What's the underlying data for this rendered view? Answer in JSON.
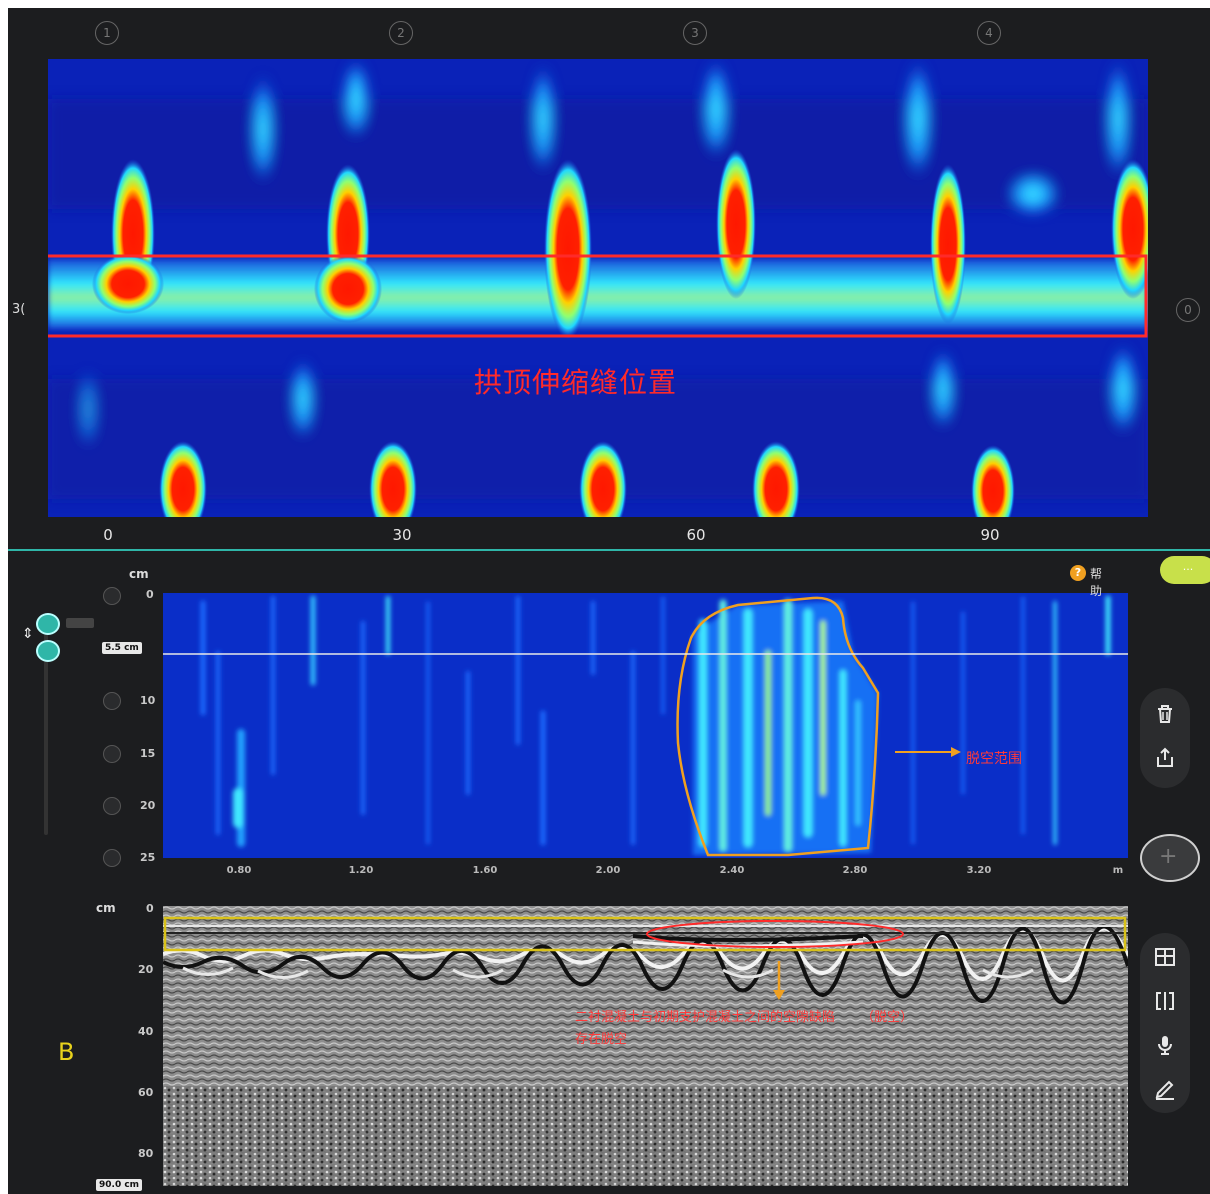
{
  "top_panel": {
    "markers": [
      "1",
      "2",
      "3",
      "4"
    ],
    "right_marker": "0",
    "left_edge_label": "3(",
    "annotation": "拱顶伸缩缝位置",
    "x_ticks": [
      "0",
      "30",
      "60",
      "90"
    ]
  },
  "mid_panel": {
    "unit": "cm",
    "depth_ticks": [
      "0",
      "10",
      "15",
      "20",
      "25"
    ],
    "depth_readout": "5.5 cm",
    "x_ticks": [
      "0.80",
      "1.20",
      "1.60",
      "2.00",
      "2.40",
      "2.80",
      "3.20"
    ],
    "x_unit": "m",
    "annotation": "脱空范围",
    "help_label": "帮助",
    "pill_label": "···"
  },
  "bottom_panel": {
    "unit": "cm",
    "depth_ticks": [
      "0",
      "20",
      "40",
      "60",
      "80"
    ],
    "depth_readout": "90.0 cm",
    "section_label": "B",
    "annotation_line1": "二衬混凝土与初期支护混凝土之间的空隙缺陷",
    "annotation_line1b": "（脱空）",
    "annotation_line2": "存在脱空"
  },
  "toolbar": {
    "delete_icon": "trash-icon",
    "export_icon": "share-icon",
    "add_icon": "plus-icon",
    "layout_icon": "layout-icon",
    "split_icon": "split-icon",
    "mic_icon": "microphone-icon",
    "pen_icon": "pen-icon"
  },
  "colors": {
    "frame_bg": "#1c1d1f",
    "divider": "#2fb6a8",
    "annotation_red": "#ff2a2a",
    "outline_orange": "#f0a020",
    "band_yellow": "#d9c21a",
    "heat_low": "#0a1fb0",
    "heat_mid": "#25e0ff",
    "heat_high": "#ff1a00"
  }
}
